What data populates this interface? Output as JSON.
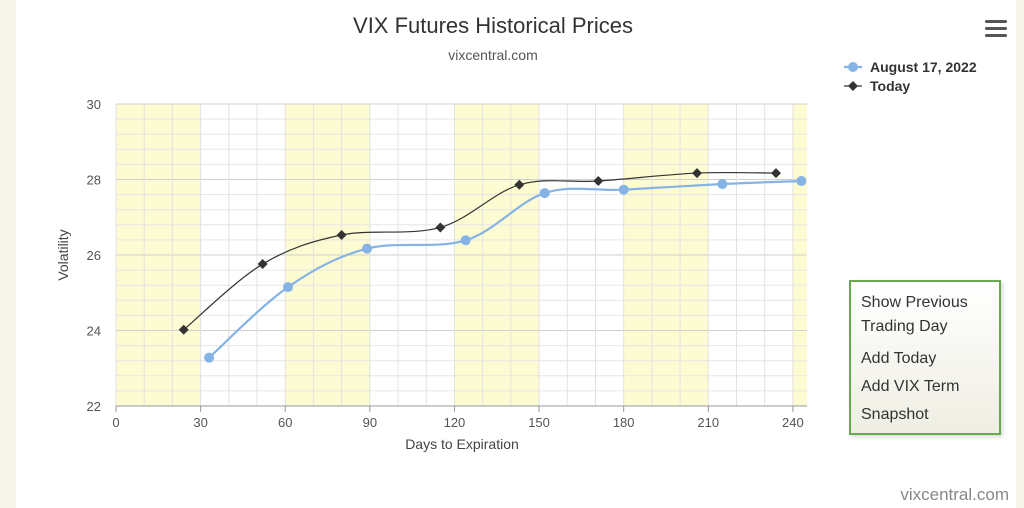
{
  "chart_data": {
    "type": "line",
    "title": "VIX Futures Historical Prices",
    "subtitle": "vixcentral.com",
    "xlabel": "Days to Expiration",
    "ylabel": "Volatility",
    "xlim": [
      0,
      245
    ],
    "ylim": [
      22,
      30
    ],
    "x_ticks": [
      0,
      30,
      60,
      90,
      120,
      150,
      180,
      210,
      240
    ],
    "y_ticks": [
      22,
      24,
      26,
      28,
      30
    ],
    "highlight_bands": [
      [
        0,
        30
      ],
      [
        60,
        90
      ],
      [
        120,
        150
      ],
      [
        180,
        210
      ],
      [
        240,
        245
      ]
    ],
    "grid": true,
    "legend_position": "top-right",
    "series": [
      {
        "name": "August 17, 2022",
        "color": "#85b3e6",
        "marker": "circle",
        "x": [
          33,
          61,
          89,
          124,
          152,
          180,
          215,
          243
        ],
        "y": [
          23.28,
          25.15,
          26.17,
          26.39,
          27.64,
          27.73,
          27.88,
          27.96
        ]
      },
      {
        "name": "Today",
        "color": "#333333",
        "marker": "diamond",
        "x": [
          24,
          52,
          80,
          115,
          143,
          171,
          206,
          234
        ],
        "y": [
          24.02,
          25.76,
          26.53,
          26.73,
          27.86,
          27.96,
          28.17,
          28.17
        ]
      }
    ]
  },
  "menu": {
    "items": [
      "Show Previous Trading Day",
      "Add Today",
      "Add VIX Term",
      "Snapshot"
    ]
  },
  "icons": {
    "menu": "hamburger-menu-icon"
  },
  "credit": "vixcentral.com"
}
